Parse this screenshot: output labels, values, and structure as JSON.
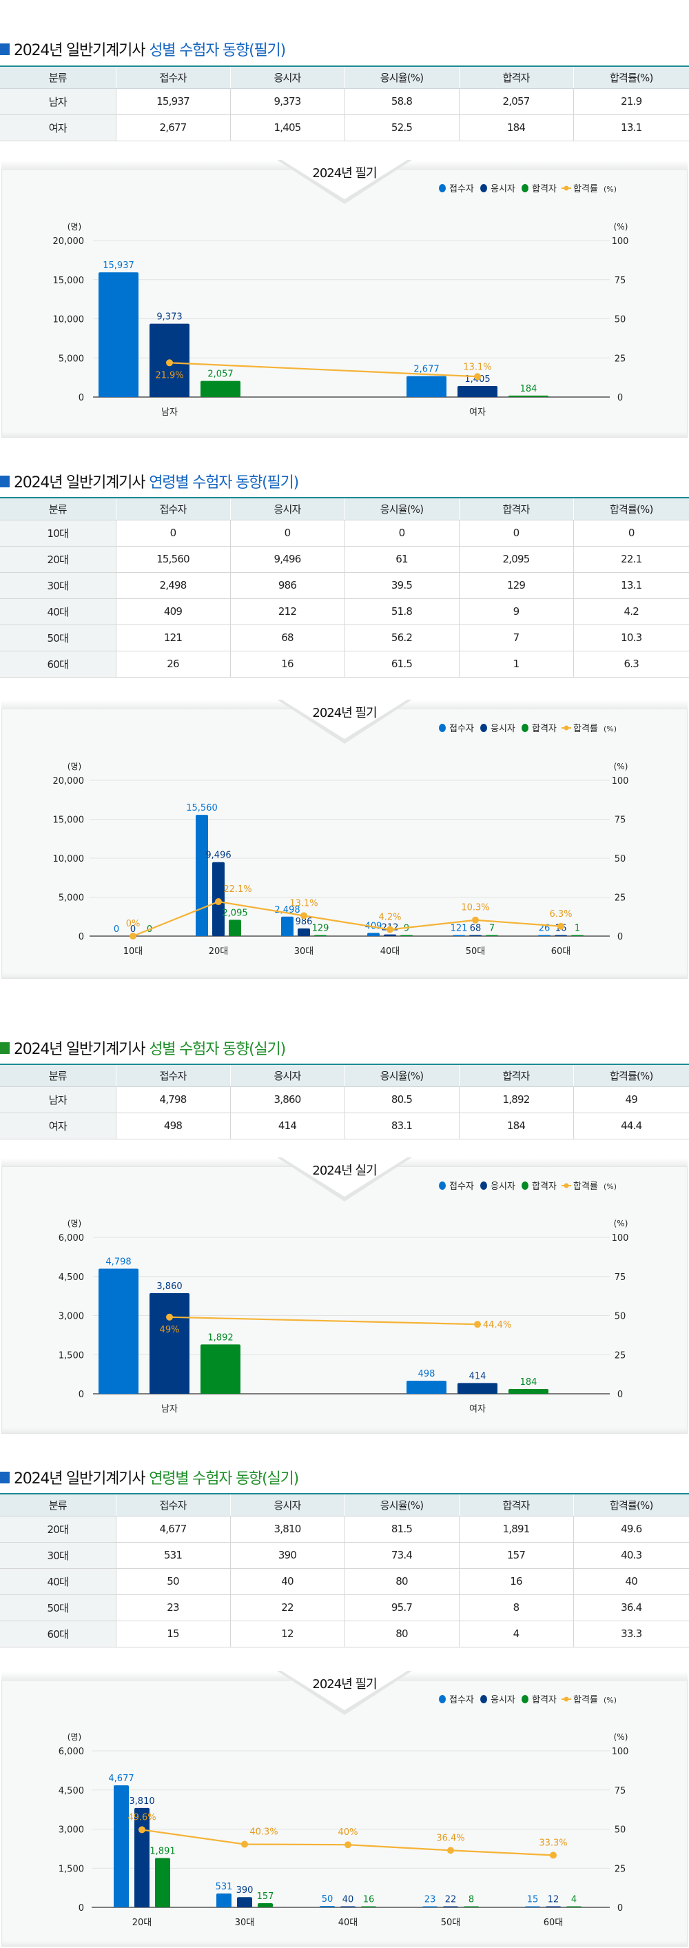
{
  "colors": {
    "applicants": "#0072cf",
    "examinees": "#003a85",
    "passers": "#008a23",
    "pass_rate": "#f5b335",
    "title_blue": "#1565c0",
    "title_green": "#1f8f2a",
    "table_border": "#1a8a93"
  },
  "legend": [
    {
      "label": "접수자",
      "icon": "circle-icon",
      "color": "#0072cf"
    },
    {
      "label": "응시자",
      "icon": "circle-icon",
      "color": "#003a85"
    },
    {
      "label": "합격자",
      "icon": "circle-icon",
      "color": "#008a23"
    },
    {
      "label": "합격률",
      "unit": "(%)",
      "icon": "line-marker-icon",
      "color": "#f5b335"
    }
  ],
  "sections": [
    {
      "title_prefix": "2024년 일반기계기사",
      "title_highlight": "성별 수험자 동향(필기)",
      "square_color": "#1565c0",
      "highlight_color": "#1565c0",
      "table": {
        "headers": [
          "분류",
          "접수자",
          "응시자",
          "응시율(%)",
          "합격자",
          "합격률(%)"
        ],
        "rows": [
          [
            "남자",
            "15,937",
            "9,373",
            "58.8",
            "2,057",
            "21.9"
          ],
          [
            "여자",
            "2,677",
            "1,405",
            "52.5",
            "184",
            "13.1"
          ]
        ]
      },
      "chart_tab": "2024년 필기"
    },
    {
      "title_prefix": "2024년 일반기계기사",
      "title_highlight": "연령별 수험자 동향(필기)",
      "square_color": "#1565c0",
      "highlight_color": "#1565c0",
      "table": {
        "headers": [
          "분류",
          "접수자",
          "응시자",
          "응시율(%)",
          "합격자",
          "합격률(%)"
        ],
        "rows": [
          [
            "10대",
            "0",
            "0",
            "0",
            "0",
            "0"
          ],
          [
            "20대",
            "15,560",
            "9,496",
            "61",
            "2,095",
            "22.1"
          ],
          [
            "30대",
            "2,498",
            "986",
            "39.5",
            "129",
            "13.1"
          ],
          [
            "40대",
            "409",
            "212",
            "51.8",
            "9",
            "4.2"
          ],
          [
            "50대",
            "121",
            "68",
            "56.2",
            "7",
            "10.3"
          ],
          [
            "60대",
            "26",
            "16",
            "61.5",
            "1",
            "6.3"
          ]
        ]
      },
      "chart_tab": "2024년 필기"
    },
    {
      "title_prefix": "2024년 일반기계기사",
      "title_highlight": "성별 수험자 동향(실기)",
      "square_color": "#1f8f2a",
      "highlight_color": "#1f8f2a",
      "table": {
        "headers": [
          "분류",
          "접수자",
          "응시자",
          "응시율(%)",
          "합격자",
          "합격률(%)"
        ],
        "rows": [
          [
            "남자",
            "4,798",
            "3,860",
            "80.5",
            "1,892",
            "49"
          ],
          [
            "여자",
            "498",
            "414",
            "83.1",
            "184",
            "44.4"
          ]
        ]
      },
      "chart_tab": "2024년 실기"
    },
    {
      "title_prefix": "2024년 일반기계기사",
      "title_highlight": "연령별 수험자 동향(실기)",
      "square_color": "#1565c0",
      "highlight_color": "#1f8f2a",
      "table": {
        "headers": [
          "분류",
          "접수자",
          "응시자",
          "응시율(%)",
          "합격자",
          "합격률(%)"
        ],
        "rows": [
          [
            "20대",
            "4,677",
            "3,810",
            "81.5",
            "1,891",
            "49.6"
          ],
          [
            "30대",
            "531",
            "390",
            "73.4",
            "157",
            "40.3"
          ],
          [
            "40대",
            "50",
            "40",
            "80",
            "16",
            "40"
          ],
          [
            "50대",
            "23",
            "22",
            "95.7",
            "8",
            "36.4"
          ],
          [
            "60대",
            "15",
            "12",
            "80",
            "4",
            "33.3"
          ]
        ]
      },
      "chart_tab": "2024년 필기"
    }
  ],
  "chart_data": [
    {
      "type": "bar",
      "title": "2024년 필기",
      "categories": [
        "남자",
        "여자"
      ],
      "series": [
        {
          "name": "접수자",
          "type": "bar",
          "values": [
            15937,
            2677
          ]
        },
        {
          "name": "응시자",
          "type": "bar",
          "values": [
            9373,
            1405
          ]
        },
        {
          "name": "합격자",
          "type": "bar",
          "values": [
            2057,
            184
          ]
        },
        {
          "name": "합격률 (%)",
          "type": "line",
          "axis": "right",
          "values": [
            21.9,
            13.1
          ]
        }
      ],
      "ylabel": "(명)",
      "ylabel_right": "(%)",
      "ylim": [
        0,
        20000
      ],
      "yticks": [
        0,
        5000,
        10000,
        15000,
        20000
      ],
      "ytick_labels": [
        "0",
        "5,000",
        "10,000",
        "15,000",
        "20,000"
      ],
      "ylim_right": [
        0,
        100
      ],
      "yticks_right": [
        0,
        25,
        50,
        75,
        100
      ],
      "legend_position": "top-right",
      "grid": true
    },
    {
      "type": "bar",
      "title": "2024년 필기",
      "categories": [
        "10대",
        "20대",
        "30대",
        "40대",
        "50대",
        "60대"
      ],
      "series": [
        {
          "name": "접수자",
          "type": "bar",
          "values": [
            0,
            15560,
            2498,
            409,
            121,
            26
          ]
        },
        {
          "name": "응시자",
          "type": "bar",
          "values": [
            0,
            9496,
            986,
            212,
            68,
            16
          ]
        },
        {
          "name": "합격자",
          "type": "bar",
          "values": [
            0,
            2095,
            129,
            9,
            7,
            1
          ]
        },
        {
          "name": "합격률 (%)",
          "type": "line",
          "axis": "right",
          "values": [
            0,
            22.1,
            13.1,
            4.2,
            10.3,
            6.3
          ]
        }
      ],
      "ylabel": "(명)",
      "ylabel_right": "(%)",
      "ylim": [
        0,
        20000
      ],
      "yticks": [
        0,
        5000,
        10000,
        15000,
        20000
      ],
      "ytick_labels": [
        "0",
        "5,000",
        "10,000",
        "15,000",
        "20,000"
      ],
      "ylim_right": [
        0,
        100
      ],
      "yticks_right": [
        0,
        25,
        50,
        75,
        100
      ],
      "legend_position": "top-right",
      "grid": true
    },
    {
      "type": "bar",
      "title": "2024년 실기",
      "categories": [
        "남자",
        "여자"
      ],
      "series": [
        {
          "name": "접수자",
          "type": "bar",
          "values": [
            4798,
            498
          ]
        },
        {
          "name": "응시자",
          "type": "bar",
          "values": [
            3860,
            414
          ]
        },
        {
          "name": "합격자",
          "type": "bar",
          "values": [
            1892,
            184
          ]
        },
        {
          "name": "합격률 (%)",
          "type": "line",
          "axis": "right",
          "values": [
            49,
            44.4
          ]
        }
      ],
      "ylabel": "(명)",
      "ylabel_right": "(%)",
      "ylim": [
        0,
        6000
      ],
      "yticks": [
        0,
        1500,
        3000,
        4500,
        6000
      ],
      "ytick_labels": [
        "0",
        "1,500",
        "3,000",
        "4,500",
        "6,000"
      ],
      "ylim_right": [
        0,
        100
      ],
      "yticks_right": [
        0,
        25,
        50,
        75,
        100
      ],
      "legend_position": "top-right",
      "grid": true
    },
    {
      "type": "bar",
      "title": "2024년 필기",
      "categories": [
        "20대",
        "30대",
        "40대",
        "50대",
        "60대"
      ],
      "series": [
        {
          "name": "접수자",
          "type": "bar",
          "values": [
            4677,
            531,
            50,
            23,
            15
          ]
        },
        {
          "name": "응시자",
          "type": "bar",
          "values": [
            3810,
            390,
            40,
            22,
            12
          ]
        },
        {
          "name": "합격자",
          "type": "bar",
          "values": [
            1891,
            157,
            16,
            8,
            4
          ]
        },
        {
          "name": "합격률 (%)",
          "type": "line",
          "axis": "right",
          "values": [
            49.6,
            40.3,
            40,
            36.4,
            33.3
          ]
        }
      ],
      "ylabel": "(명)",
      "ylabel_right": "(%)",
      "ylim": [
        0,
        6000
      ],
      "yticks": [
        0,
        1500,
        3000,
        4500,
        6000
      ],
      "ytick_labels": [
        "0",
        "1,500",
        "3,000",
        "4,500",
        "6,000"
      ],
      "ylim_right": [
        0,
        100
      ],
      "yticks_right": [
        0,
        25,
        50,
        75,
        100
      ],
      "legend_position": "top-right",
      "grid": true
    }
  ]
}
